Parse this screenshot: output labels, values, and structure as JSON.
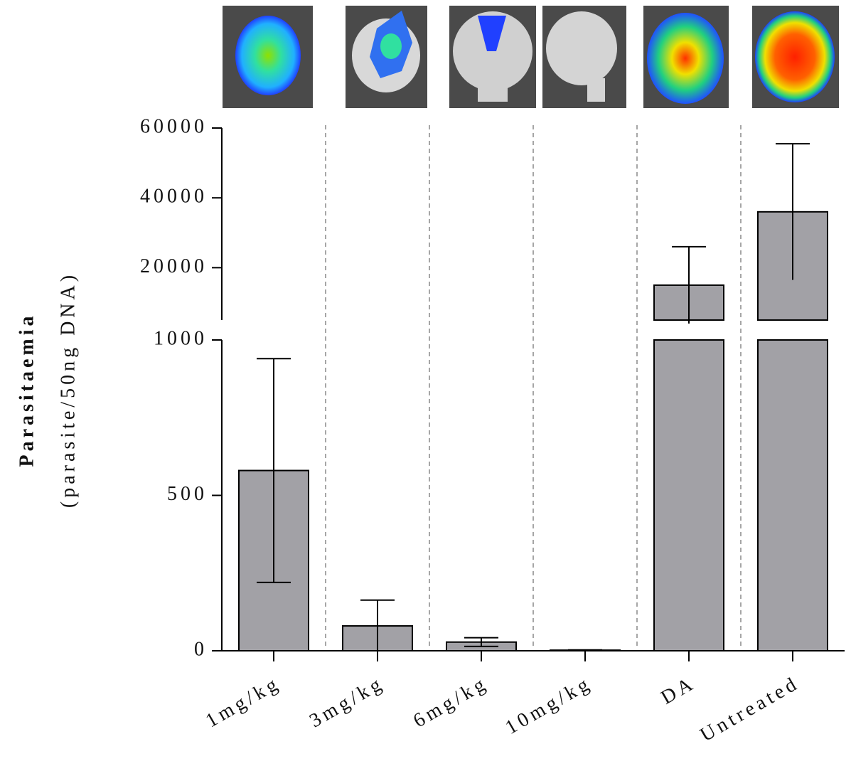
{
  "chart_data": {
    "type": "bar",
    "y_title": "Parasitaemia",
    "y_subtitle": "(parasite/50ng DNA)",
    "categories": [
      "1mg/kg",
      "3mg/kg",
      "6mg/kg",
      "10mg/kg",
      "DA",
      "Untreated"
    ],
    "values": [
      580,
      80,
      28,
      2,
      15000,
      36000
    ],
    "errors": [
      360,
      83,
      14,
      1,
      11000,
      19500
    ],
    "color": "#a2a1a6",
    "segments": [
      {
        "ylim": [
          0,
          1000
        ],
        "yticks": [
          0,
          500,
          1000
        ]
      },
      {
        "ylim": [
          5000,
          60000
        ],
        "yticks": [
          20000,
          40000,
          60000
        ]
      }
    ]
  }
}
